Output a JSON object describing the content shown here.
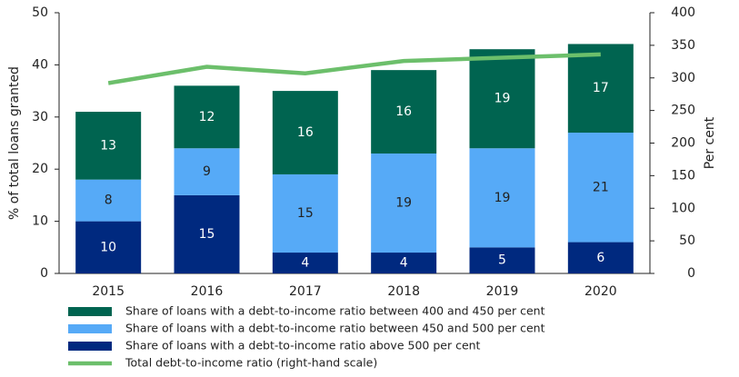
{
  "chart_data": {
    "type": "bar",
    "categories": [
      "2015",
      "2016",
      "2017",
      "2018",
      "2019",
      "2020"
    ],
    "ylabel": "% of total loans granted",
    "y2label": "Per cent",
    "ylim": [
      0,
      50
    ],
    "yticks": [
      0,
      10,
      20,
      30,
      40,
      50
    ],
    "y2lim": [
      0,
      400
    ],
    "y2ticks": [
      0,
      50,
      100,
      150,
      200,
      250,
      300,
      350,
      400
    ],
    "stacked": true,
    "series": [
      {
        "name": "Share of loans with a debt-to-income ratio above 500 per cent",
        "color": "#00297f",
        "label_color": "#ffffff",
        "values": [
          10,
          15,
          4,
          4,
          5,
          6
        ]
      },
      {
        "name": "Share of loans with a debt-to-income ratio between 450 and 500 per cent",
        "color": "#56aaf7",
        "label_color": "#222222",
        "values": [
          8,
          9,
          15,
          19,
          19,
          21
        ]
      },
      {
        "name": "Share of loans with a debt-to-income ratio between 400 and 450 per cent",
        "color": "#006450",
        "label_color": "#ffffff",
        "values": [
          13,
          12,
          16,
          16,
          19,
          17
        ]
      },
      {
        "name": "Total debt-to-income ratio (right-hand scale)",
        "type": "line",
        "axis": "y2",
        "color": "#6cbf6b",
        "values": [
          292,
          317,
          307,
          326,
          331,
          336
        ]
      }
    ]
  }
}
